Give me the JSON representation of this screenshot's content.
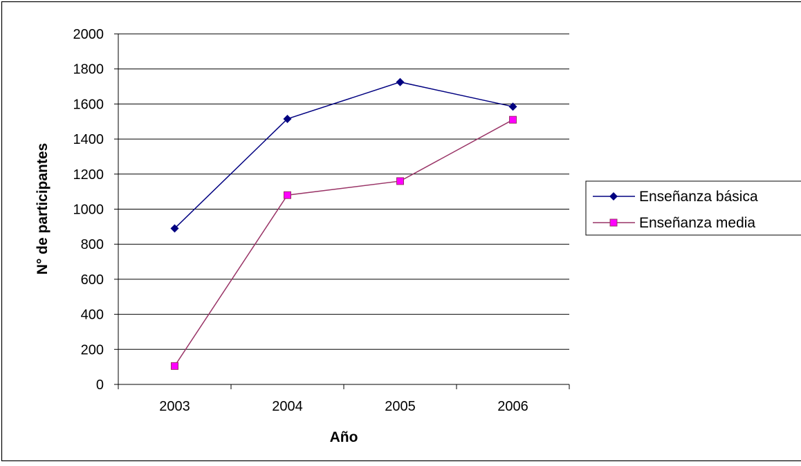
{
  "chart_data": {
    "type": "line",
    "title": "",
    "xlabel": "Año",
    "ylabel": "N° de participantes",
    "categories": [
      "2003",
      "2004",
      "2005",
      "2006"
    ],
    "ylim": [
      0,
      2000
    ],
    "yticks": [
      "0",
      "200",
      "400",
      "600",
      "800",
      "1000",
      "1200",
      "1400",
      "1600",
      "1800",
      "2000"
    ],
    "grid": true,
    "legend_position": "right",
    "series": [
      {
        "name": "Enseñanza básica",
        "values": [
          890,
          1515,
          1725,
          1585
        ],
        "color": "#000080",
        "marker": "diamond",
        "marker_color": "#000080"
      },
      {
        "name": "Enseñanza media",
        "values": [
          105,
          1080,
          1160,
          1510
        ],
        "color": "#993366",
        "marker": "square",
        "marker_color": "#ff00ff"
      }
    ]
  }
}
